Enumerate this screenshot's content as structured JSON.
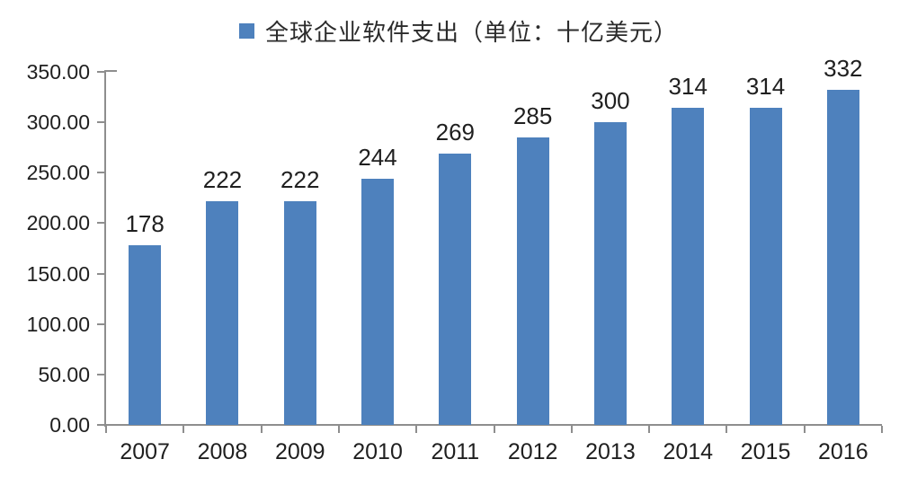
{
  "chart_data": {
    "type": "bar",
    "title": "全球企业软件支出（单位：十亿美元）",
    "legend": {
      "position": "top-center",
      "entries": [
        {
          "label": "全球企业软件支出（单位：十亿美元）",
          "marker": "square-icon",
          "color": "#4e81bd"
        }
      ]
    },
    "categories": [
      "2007",
      "2008",
      "2009",
      "2010",
      "2011",
      "2012",
      "2013",
      "2014",
      "2015",
      "2016"
    ],
    "values": [
      178,
      222,
      222,
      244,
      269,
      285,
      300,
      314,
      314,
      332
    ],
    "value_labels": [
      "178",
      "222",
      "222",
      "244",
      "269",
      "285",
      "300",
      "314",
      "314",
      "332"
    ],
    "xlabel": "",
    "ylabel": "",
    "ylim": [
      0,
      350
    ],
    "ytick_step": 50,
    "ytick_labels": [
      "0.00",
      "50.00",
      "100.00",
      "150.00",
      "200.00",
      "250.00",
      "300.00",
      "350.00"
    ],
    "grid": false,
    "colors": {
      "bar": "#4e81bd",
      "axis": "#8e8e8e",
      "text": "#1f1f1f"
    }
  }
}
